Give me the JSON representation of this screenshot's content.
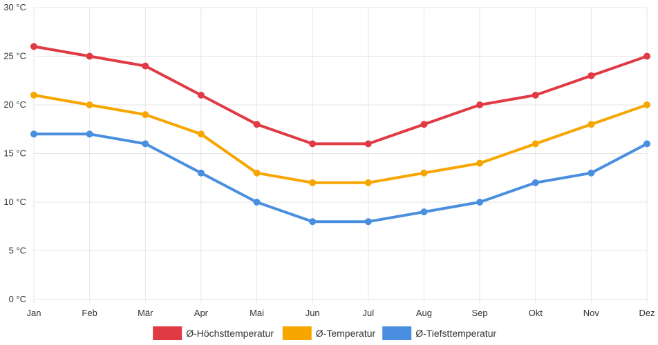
{
  "chart_data": {
    "type": "line",
    "categories": [
      "Jan",
      "Feb",
      "Mär",
      "Apr",
      "Mai",
      "Jun",
      "Jul",
      "Aug",
      "Sep",
      "Okt",
      "Nov",
      "Dez"
    ],
    "y_unit": "°C",
    "ylim": [
      0,
      30
    ],
    "y_ticks": [
      0,
      5,
      10,
      15,
      20,
      25,
      30
    ],
    "grid": true,
    "legend_position": "bottom",
    "series": [
      {
        "name": "Ø-Höchsttemperatur",
        "color": "#e03a45",
        "values": [
          26,
          25,
          24,
          21,
          18,
          16,
          16,
          18,
          20,
          21,
          23,
          25
        ]
      },
      {
        "name": "Ø-Temperatur",
        "color": "#f7a600",
        "values": [
          21,
          20,
          19,
          17,
          13,
          12,
          12,
          13,
          14,
          16,
          18,
          20
        ]
      },
      {
        "name": "Ø-Tiefsttemperatur",
        "color": "#4a8fdf",
        "values": [
          17,
          17,
          16,
          13,
          10,
          8,
          8,
          9,
          10,
          12,
          13,
          16
        ]
      }
    ]
  }
}
